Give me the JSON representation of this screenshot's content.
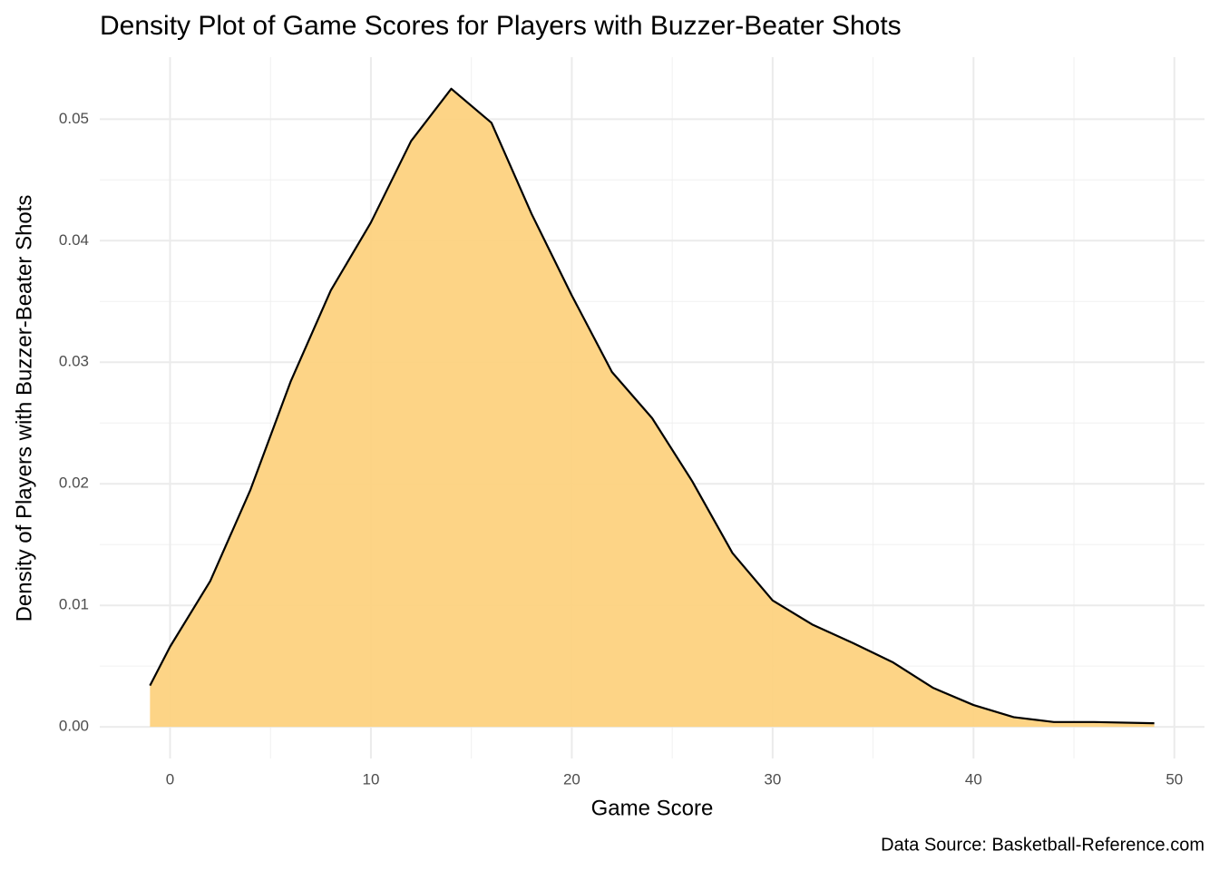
{
  "chart_data": {
    "type": "density",
    "title": "Density Plot of Game Scores for Players with Buzzer-Beater Shots",
    "x_label": "Game Score",
    "y_label": "Density of Players with Buzzer-Beater Shots",
    "caption": "Data Source: Basketball-Reference.com",
    "x": [
      -1,
      0,
      2,
      4,
      6,
      8,
      10,
      12,
      14,
      16,
      18,
      20,
      22,
      24,
      26,
      28,
      30,
      32,
      34,
      36,
      38,
      40,
      42,
      44,
      46,
      49
    ],
    "values": [
      0.0034,
      0.0066,
      0.012,
      0.0195,
      0.0284,
      0.0359,
      0.0415,
      0.0482,
      0.0525,
      0.0497,
      0.0422,
      0.0355,
      0.0292,
      0.0254,
      0.0202,
      0.0143,
      0.0104,
      0.0084,
      0.0069,
      0.0053,
      0.0032,
      0.0018,
      0.0008,
      0.0004,
      0.0004,
      0.0003
    ],
    "fill": "#fdd27f",
    "line_color": "#000000",
    "xlim": [
      -3.5,
      51.5
    ],
    "ylim": [
      -0.0026,
      0.0551
    ],
    "xticks": [
      0,
      10,
      20,
      30,
      40,
      50
    ],
    "yticks": [
      {
        "value": 0,
        "label": "0.00"
      },
      {
        "value": 0.01,
        "label": "0.01"
      },
      {
        "value": 0.02,
        "label": "0.02"
      },
      {
        "value": 0.03,
        "label": "0.03"
      },
      {
        "value": 0.04,
        "label": "0.04"
      },
      {
        "value": 0.05,
        "label": "0.05"
      }
    ],
    "xminor_ticks": [
      5,
      15,
      25,
      35,
      45
    ],
    "yminor_ticks": [
      0.005,
      0.015,
      0.025,
      0.035,
      0.045
    ],
    "grid": true
  }
}
